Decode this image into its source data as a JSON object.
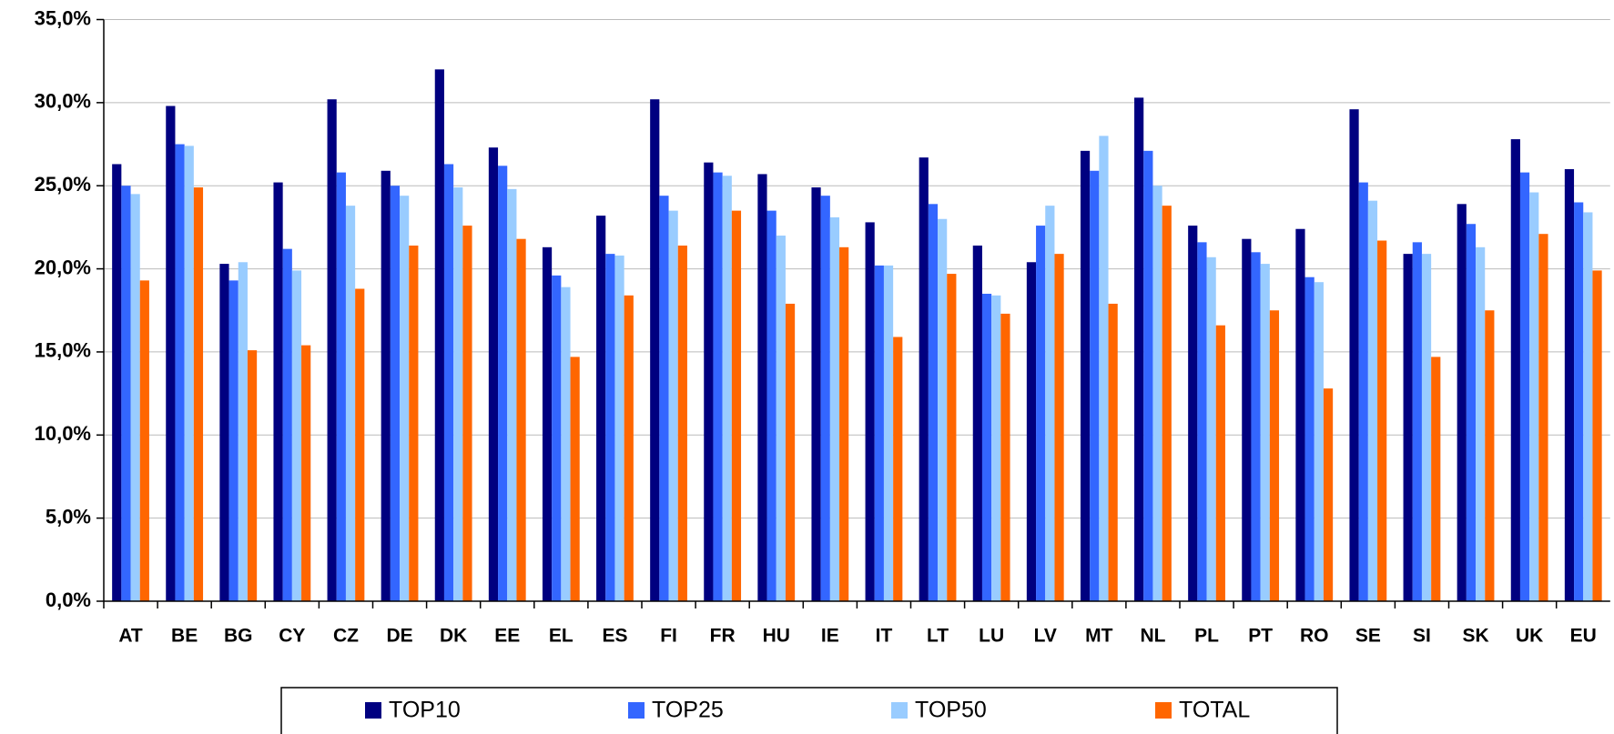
{
  "chart_data": {
    "type": "bar",
    "categories": [
      "AT",
      "BE",
      "BG",
      "CY",
      "CZ",
      "DE",
      "DK",
      "EE",
      "EL",
      "ES",
      "FI",
      "FR",
      "HU",
      "IE",
      "IT",
      "LT",
      "LU",
      "LV",
      "MT",
      "NL",
      "PL",
      "PT",
      "RO",
      "SE",
      "SI",
      "SK",
      "UK",
      "EU"
    ],
    "series": [
      {
        "name": "TOP10",
        "color": "#000080",
        "values": [
          26.3,
          29.8,
          20.3,
          25.2,
          30.2,
          25.9,
          32.0,
          27.3,
          21.3,
          23.2,
          30.2,
          26.4,
          25.7,
          24.9,
          22.8,
          26.7,
          21.4,
          20.4,
          27.1,
          30.3,
          22.6,
          21.8,
          22.4,
          29.6,
          20.9,
          23.9,
          27.8,
          26.0
        ]
      },
      {
        "name": "TOP25",
        "color": "#3366ff",
        "values": [
          25.0,
          27.5,
          19.3,
          21.2,
          25.8,
          25.0,
          26.3,
          26.2,
          19.6,
          20.9,
          24.4,
          25.8,
          23.5,
          24.4,
          20.2,
          23.9,
          18.5,
          22.6,
          25.9,
          27.1,
          21.6,
          21.0,
          19.5,
          25.2,
          21.6,
          22.7,
          25.8,
          24.0
        ]
      },
      {
        "name": "TOP50",
        "color": "#99ccff",
        "values": [
          24.5,
          27.4,
          20.4,
          19.9,
          23.8,
          24.4,
          24.9,
          24.8,
          18.9,
          20.8,
          23.5,
          25.6,
          22.0,
          23.1,
          20.2,
          23.0,
          18.4,
          23.8,
          28.0,
          25.0,
          20.7,
          20.3,
          19.2,
          24.1,
          20.9,
          21.3,
          24.6,
          23.4
        ]
      },
      {
        "name": "TOTAL",
        "color": "#ff6600",
        "values": [
          19.3,
          24.9,
          15.1,
          15.4,
          18.8,
          21.4,
          22.6,
          21.8,
          14.7,
          18.4,
          21.4,
          23.5,
          17.9,
          21.3,
          15.9,
          19.7,
          17.3,
          20.9,
          17.9,
          23.8,
          16.6,
          17.5,
          12.8,
          21.7,
          14.7,
          17.5,
          22.1,
          19.9
        ]
      }
    ],
    "ylim": [
      0,
      35
    ],
    "yticks": [
      {
        "value": 0,
        "label": "0,0%"
      },
      {
        "value": 5,
        "label": "5,0%"
      },
      {
        "value": 10,
        "label": "10,0%"
      },
      {
        "value": 15,
        "label": "15,0%"
      },
      {
        "value": 20,
        "label": "20,0%"
      },
      {
        "value": 25,
        "label": "25,0%"
      },
      {
        "value": 30,
        "label": "30,0%"
      },
      {
        "value": 35,
        "label": "35,0%"
      }
    ],
    "grid": true,
    "legend": "bottom"
  }
}
